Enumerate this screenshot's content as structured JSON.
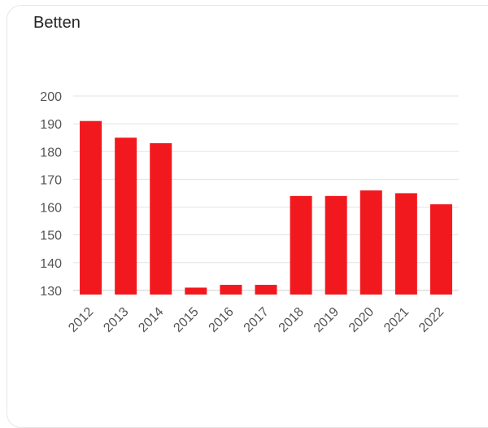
{
  "card": {
    "title": "Betten"
  },
  "chart_data": {
    "type": "bar",
    "categories": [
      "2012",
      "2013",
      "2014",
      "2015",
      "2016",
      "2017",
      "2018",
      "2019",
      "2020",
      "2021",
      "2022"
    ],
    "values": [
      191,
      185,
      183,
      131,
      132,
      132,
      164,
      164,
      166,
      165,
      161
    ],
    "title": "Betten",
    "xlabel": "",
    "ylabel": "",
    "ylim": [
      128.5,
      200
    ],
    "yticks": [
      130,
      140,
      150,
      160,
      170,
      180,
      190,
      200
    ],
    "grid": true,
    "legend": "none",
    "colors": {
      "bar": "#f2191e",
      "grid": "#e3e3e3",
      "axis": "#cccccc",
      "text": "#555555"
    }
  }
}
